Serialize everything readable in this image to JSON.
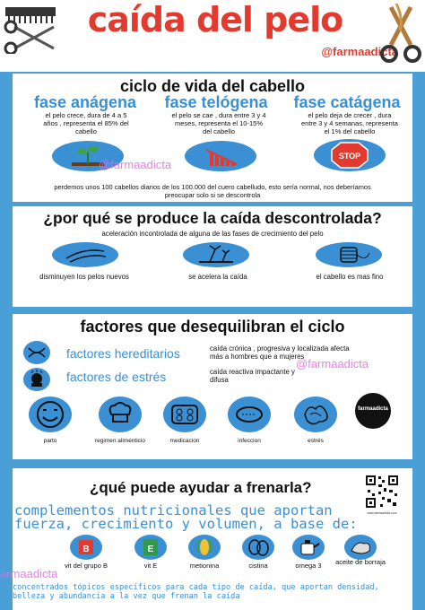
{
  "header": {
    "title": "caída del pelo",
    "handle": "@farmaadicta"
  },
  "section1": {
    "title": "ciclo de vida del cabello",
    "phases": [
      {
        "name": "fase anágena",
        "text": "el pelo crece, dura de 4 a 5 años , representa el 85% del cabello"
      },
      {
        "name": "fase telógena",
        "text": "el pelo se cae , dura entre 3 y 4 meses, representa el 10-15% del cabello"
      },
      {
        "name": "fase catágena",
        "text": "el pelo deja de crecer , dura entre 3 y 4 semanas, representa el 1% del cabello"
      }
    ],
    "watermark": "@farmaadicta",
    "stop_label": "STOP",
    "note": "perdemos unos 100 cabellos diarios de los 100.000 del cuero cabelludo, esto sería normal, nos deberíamos preocupar solo si se descontrola"
  },
  "section2": {
    "title": "¿por qué se produce la caída descontrolada?",
    "subtitle": "aceleración incontrolada de alguna de las fases de crecimiento del pelo",
    "items": [
      "disminuyen los pelos nuevos",
      "se acelera la caída",
      "el cabello es mas fino"
    ]
  },
  "section3": {
    "title": "factores que desequilibran el ciclo",
    "factors": [
      "factores hereditarios",
      "factores de estrés"
    ],
    "hereditary_desc": "caída crónica , progresiva y localizada afecta más a hombres que a mujeres",
    "stress_desc": "caída reactiva impactante y difusa",
    "watermark": "@farmaadicta",
    "causes": [
      "parto",
      "regimen alimenticio",
      "medicacion",
      "infeccion",
      "estrés"
    ],
    "brand": "farmaadicta"
  },
  "section4": {
    "title": "¿qué puede ayudar a frenarla?",
    "qr_caption": "www.farmaadicta.com",
    "nutrients_text": "complementos nutricionales que aportan fuerza, crecimiento y volumen, a base de:",
    "nutrients": [
      "vit del grupo B",
      "vit E",
      "metionina",
      "cistina",
      "omega 3",
      "aceite de borraja"
    ],
    "b_label": "B",
    "e_label": "E",
    "watermark": "armaadicta",
    "topicals": "concentrados tópicos específicos para cada tipo de caída, que aportan densidad, belleza y abundancia a la vez que frenan la caída"
  },
  "colors": {
    "accent": "#e23a2f",
    "blue": "#3b8fd3",
    "background": "#4a9fd6"
  }
}
